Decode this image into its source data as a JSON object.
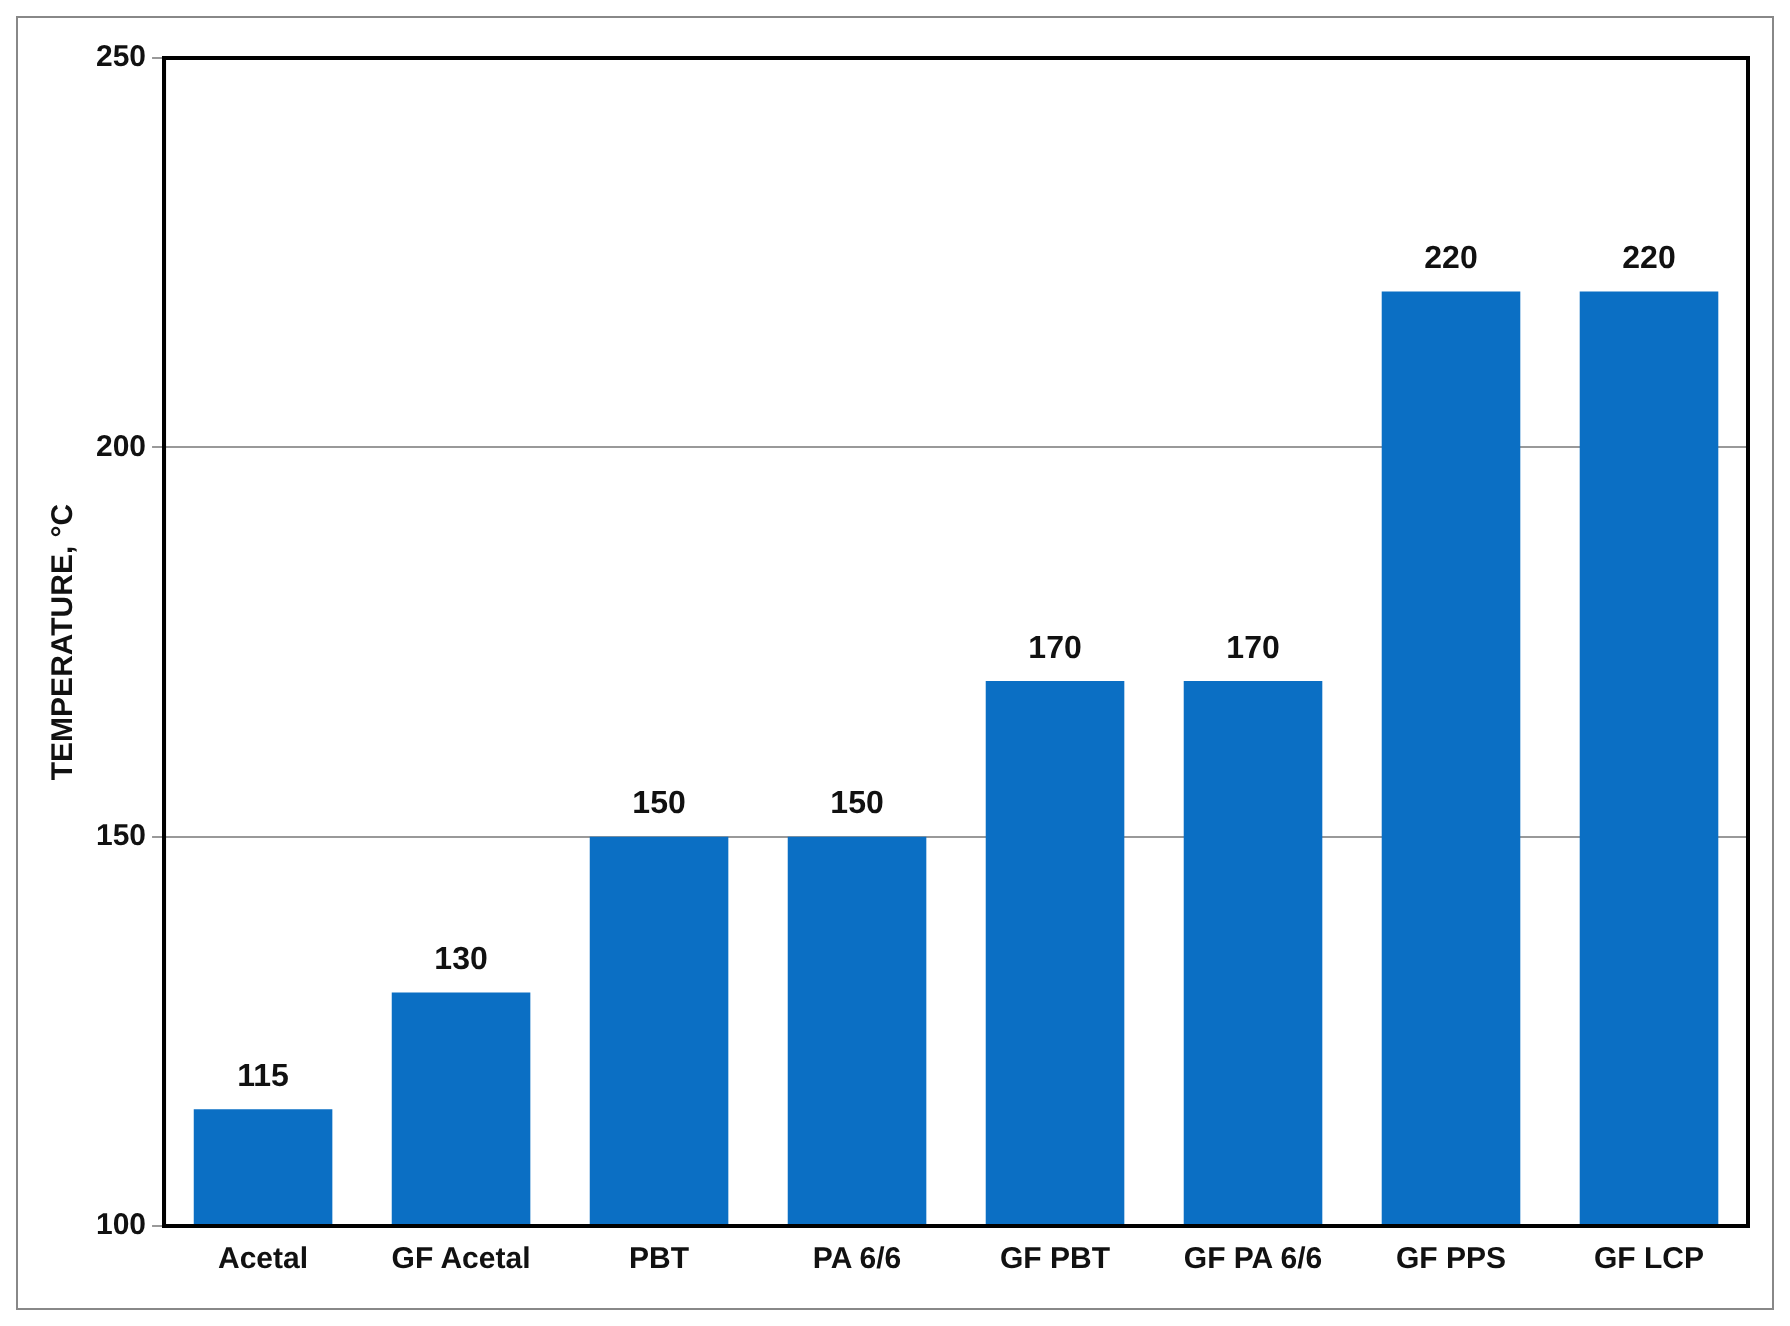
{
  "chart_data": {
    "type": "bar",
    "ylabel": "TEMPERATURE, °C",
    "categories": [
      "Acetal",
      "GF Acetal",
      "PBT",
      "PA 6/6",
      "GF PBT",
      "GF PA 6/6",
      "GF PPS",
      "GF LCP"
    ],
    "values": [
      115,
      130,
      150,
      150,
      170,
      170,
      220,
      220
    ],
    "color": "#0b6fc4",
    "ylim": [
      100,
      250
    ],
    "yticks": [
      100,
      150,
      200,
      250
    ],
    "grid": "y",
    "data_labels": true
  }
}
